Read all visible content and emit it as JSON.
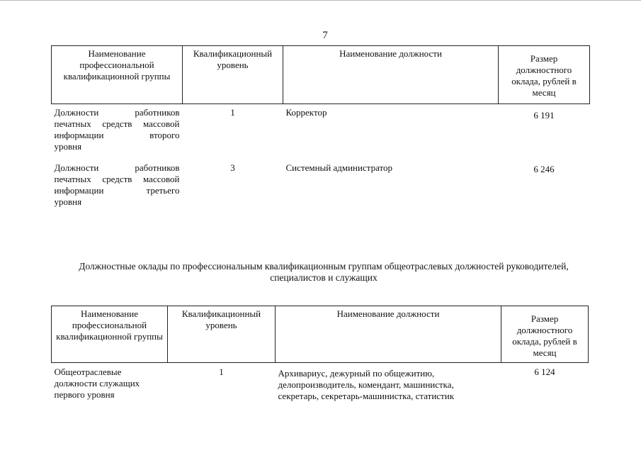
{
  "page_number": "7",
  "table1": {
    "headers": [
      "Наименование профессиональной квалификационной группы",
      "Квалификационный уровень",
      "Наименование должности",
      "Размер должностного оклада, рублей в месяц"
    ],
    "rows": [
      {
        "group_lines": [
          "Должности работников",
          "печатных средств массовой",
          "информации второго"
        ],
        "group_last": "уровня",
        "level": "1",
        "position": "Корректор",
        "salary": "6 191"
      },
      {
        "group_lines": [
          "Должности работников",
          "печатных средств массовой",
          "информации третьего"
        ],
        "group_last": "уровня",
        "level": "3",
        "position": "Системный администратор",
        "salary": "6 246"
      }
    ]
  },
  "section_heading": "Должностные оклады по профессиональным квалификационным группам общеотраслевых должностей руководителей, специалистов и служащих",
  "table2": {
    "headers": [
      "Наименование профессиональной квалификационной группы",
      "Квалификационный уровень",
      "Наименование должности",
      "Размер должностного оклада, рублей в месяц"
    ],
    "rows": [
      {
        "group": "Общеотраслевые должности служащих первого уровня",
        "level": "1",
        "position": "Архивариус, дежурный по общежитию, делопроизводитель, комендант, машинистка, секретарь, секретарь-машинистка, статистик",
        "salary": "6 124"
      }
    ]
  }
}
